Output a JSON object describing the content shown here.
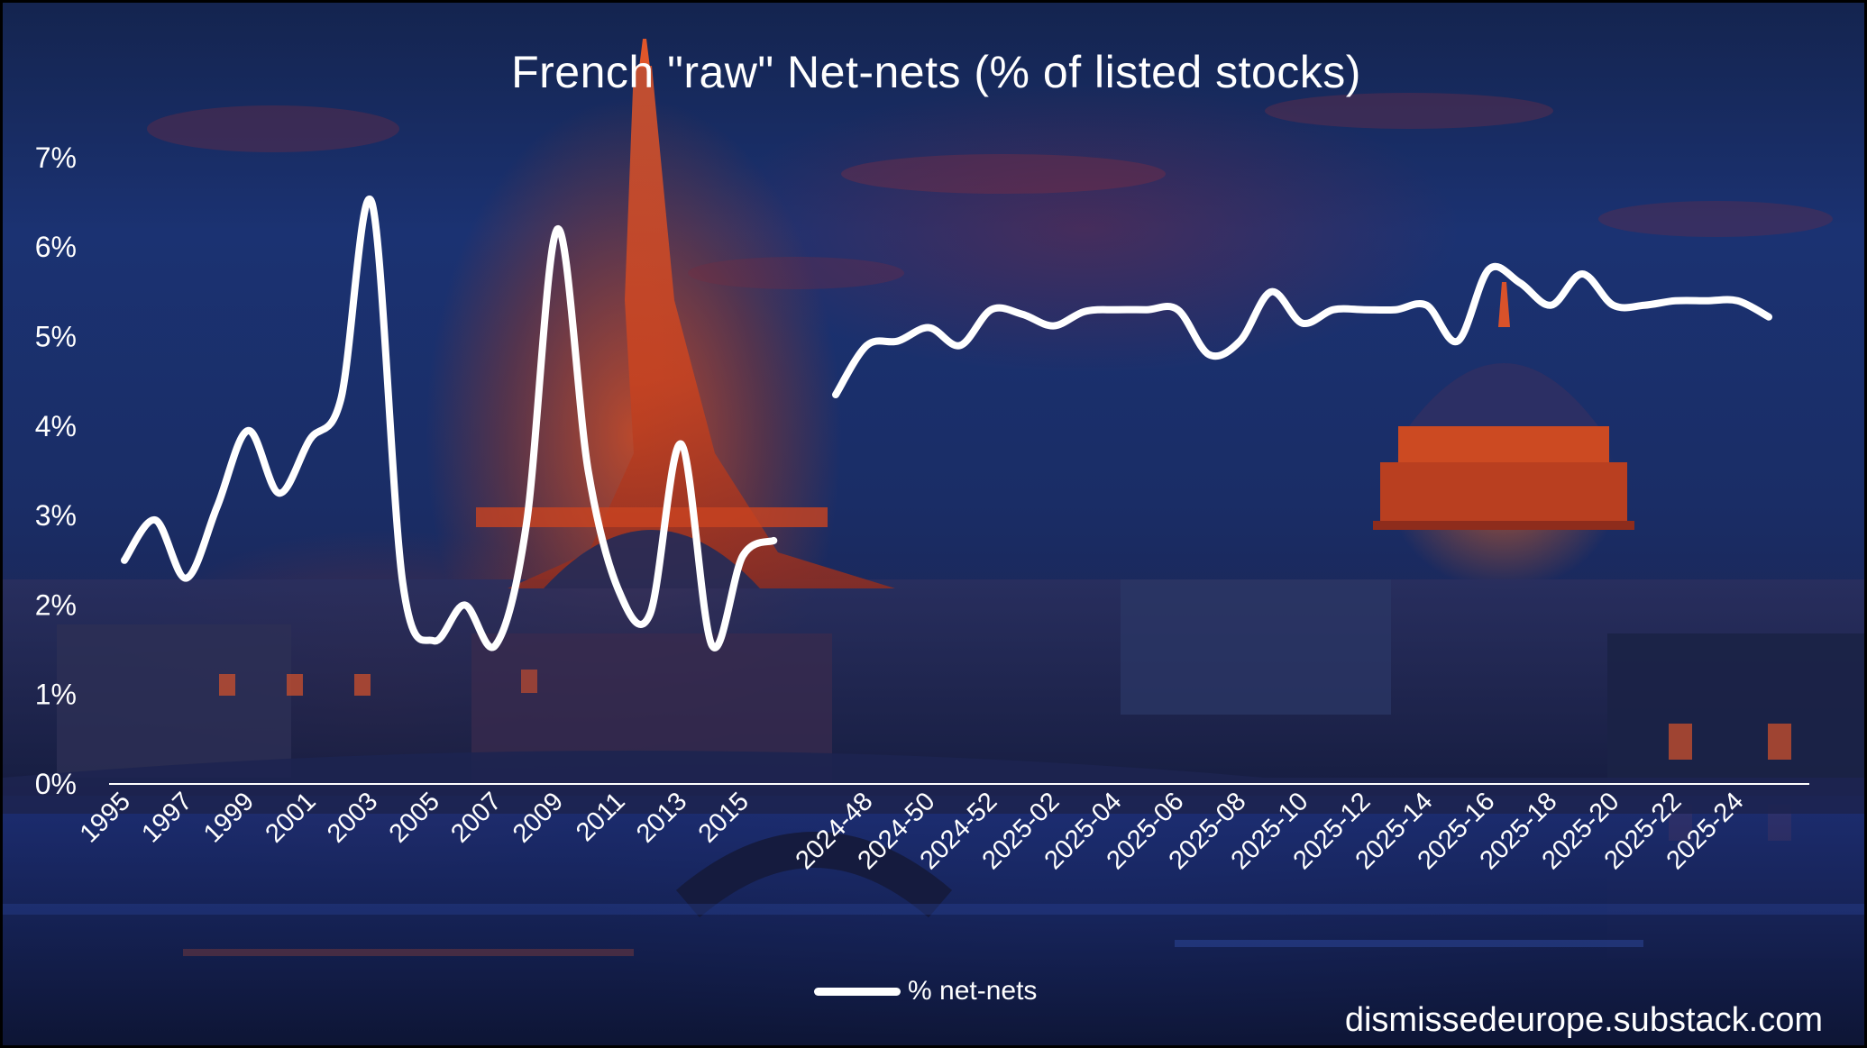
{
  "chart_data": {
    "type": "line",
    "title": "French \"raw\" Net-nets (% of listed stocks)",
    "ylabel": "",
    "ylim": [
      0,
      7
    ],
    "y_ticks": [
      "0%",
      "1%",
      "2%",
      "3%",
      "4%",
      "5%",
      "6%",
      "7%"
    ],
    "grid": false,
    "legend_position": "bottom",
    "series": [
      {
        "name": "% net-nets",
        "color": "#ffffff",
        "segments": [
          {
            "x": [
              "1995",
              "1996",
              "1997",
              "1998",
              "1999",
              "2000",
              "2001",
              "2002",
              "2003",
              "2004",
              "2005",
              "2006",
              "2007",
              "2008",
              "2009",
              "2010",
              "2011",
              "2012",
              "2013",
              "2014",
              "2015",
              "2016"
            ],
            "values": [
              2.5,
              2.95,
              2.3,
              3.1,
              3.95,
              3.25,
              3.85,
              4.3,
              6.5,
              2.25,
              1.6,
              2.0,
              1.55,
              2.9,
              6.2,
              3.5,
              2.15,
              1.9,
              3.8,
              1.55,
              2.55,
              2.72
            ]
          },
          {
            "x": [
              "2024-47",
              "2024-48",
              "2024-49",
              "2024-50",
              "2024-51",
              "2024-52",
              "2025-01",
              "2025-02",
              "2025-03",
              "2025-04",
              "2025-05",
              "2025-06",
              "2025-07",
              "2025-08",
              "2025-09",
              "2025-10",
              "2025-11",
              "2025-12",
              "2025-13",
              "2025-14",
              "2025-15",
              "2025-16",
              "2025-17",
              "2025-18",
              "2025-19",
              "2025-20",
              "2025-21",
              "2025-22",
              "2025-23",
              "2025-24",
              "2025-25"
            ],
            "values": [
              4.35,
              4.9,
              4.95,
              5.1,
              4.9,
              5.3,
              5.25,
              5.12,
              5.28,
              5.3,
              5.3,
              5.3,
              4.8,
              4.95,
              5.5,
              5.15,
              5.3,
              5.3,
              5.3,
              5.35,
              4.95,
              5.75,
              5.6,
              5.35,
              5.7,
              5.35,
              5.35,
              5.4,
              5.4,
              5.4,
              5.22
            ]
          }
        ]
      }
    ],
    "x_tick_labels": [
      "1995",
      "1997",
      "1999",
      "2001",
      "2003",
      "2005",
      "2007",
      "2009",
      "2011",
      "2013",
      "2015",
      "2024-48",
      "2024-50",
      "2024-52",
      "2025-02",
      "2025-04",
      "2025-06",
      "2025-08",
      "2025-10",
      "2025-12",
      "2025-14",
      "2025-16",
      "2025-18",
      "2025-20",
      "2025-22",
      "2025-24"
    ]
  },
  "legend_label": "% net-nets",
  "watermark": "dismissedeurope.substack.com",
  "colors": {
    "line": "#ffffff",
    "text": "#ffffff",
    "background": "#1b3272",
    "accent": "#d9522a"
  }
}
